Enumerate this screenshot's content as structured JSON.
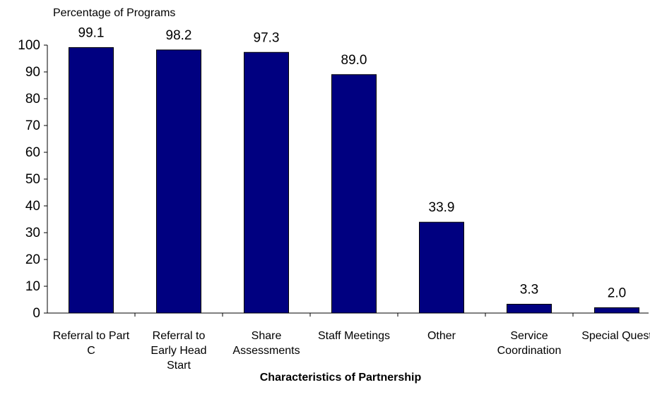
{
  "chart_data": {
    "type": "bar",
    "y_axis_label": "Percentage of Programs",
    "x_axis_label": "Characteristics of Partnership",
    "categories": [
      "Referral to Part C",
      "Referral to Early Head Start",
      "Share Assessments",
      "Staff Meetings",
      "Other",
      "Service Coordination",
      "Special Quest"
    ],
    "values": [
      99.1,
      98.2,
      97.3,
      89.0,
      33.9,
      3.3,
      2.0
    ],
    "value_labels": [
      "99.1",
      "98.2",
      "97.3",
      "89.0",
      "33.9",
      "3.3",
      "2.0"
    ],
    "color": "#000080",
    "ylim": [
      0,
      100
    ],
    "yticks": [
      0,
      10,
      20,
      30,
      40,
      50,
      60,
      70,
      80,
      90,
      100
    ],
    "grid": false
  }
}
